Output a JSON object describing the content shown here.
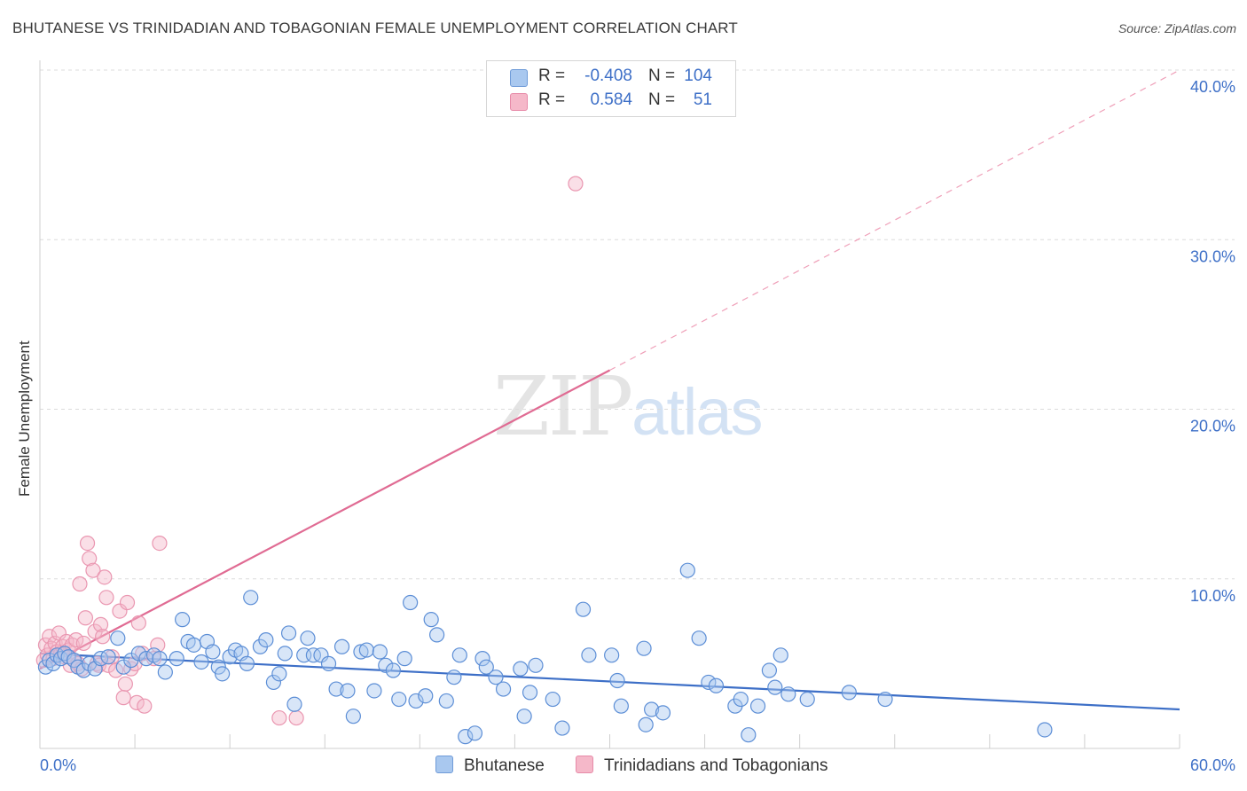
{
  "header": {
    "title": "BHUTANESE VS TRINIDADIAN AND TOBAGONIAN FEMALE UNEMPLOYMENT CORRELATION CHART",
    "source": "Source: ZipAtlas.com"
  },
  "watermark": {
    "zip": "ZIP",
    "atlas": "atlas"
  },
  "legend_box": [
    {
      "r_label": "R =",
      "r_value": "-0.408",
      "n_label": "N =",
      "n_value": "104",
      "color": "#a9c8ef"
    },
    {
      "r_label": "R =",
      "r_value": "0.584",
      "n_label": "N =",
      "n_value": "51",
      "color": "#f5b8c9"
    }
  ],
  "bottom_legend": [
    {
      "label": "Bhutanese",
      "color": "#a9c8ef"
    },
    {
      "label": "Trinidadians and Tobagonians",
      "color": "#f5b8c9"
    }
  ],
  "chart_data": {
    "type": "scatter",
    "title": "BHUTANESE VS TRINIDADIAN AND TOBAGONIAN FEMALE UNEMPLOYMENT CORRELATION CHART",
    "xlabel": "",
    "ylabel": "Female Unemployment",
    "xlim": [
      0,
      60
    ],
    "ylim": [
      0,
      40
    ],
    "x_tick_labels": [
      "0.0%",
      "60.0%"
    ],
    "y_ticks": [
      10,
      20,
      30,
      40
    ],
    "y_tick_labels": [
      "10.0%",
      "20.0%",
      "30.0%",
      "40.0%"
    ],
    "grid": true,
    "colors": {
      "blue": "#3d6fc7",
      "pink": "#e06b93",
      "blue_fill": "#a9c8ef",
      "pink_fill": "#f5b8c9",
      "tick_label": "#3d6fc7"
    },
    "series": [
      {
        "name": "Bhutanese",
        "color": "#3d6fc7",
        "trend": {
          "x": [
            0,
            60
          ],
          "y": [
            5.6,
            2.3
          ]
        },
        "points": [
          [
            0.3,
            4.8
          ],
          [
            0.5,
            5.2
          ],
          [
            0.7,
            5.0
          ],
          [
            0.9,
            5.5
          ],
          [
            1.1,
            5.3
          ],
          [
            1.3,
            5.6
          ],
          [
            1.5,
            5.4
          ],
          [
            1.8,
            5.2
          ],
          [
            2.0,
            4.8
          ],
          [
            2.3,
            4.6
          ],
          [
            2.6,
            5.0
          ],
          [
            2.9,
            4.7
          ],
          [
            3.2,
            5.3
          ],
          [
            3.6,
            5.4
          ],
          [
            4.1,
            6.5
          ],
          [
            4.4,
            4.8
          ],
          [
            4.8,
            5.2
          ],
          [
            5.2,
            5.6
          ],
          [
            5.6,
            5.3
          ],
          [
            6.0,
            5.5
          ],
          [
            6.3,
            5.3
          ],
          [
            6.6,
            4.5
          ],
          [
            7.2,
            5.3
          ],
          [
            7.5,
            7.6
          ],
          [
            7.8,
            6.3
          ],
          [
            8.1,
            6.1
          ],
          [
            8.5,
            5.1
          ],
          [
            8.8,
            6.3
          ],
          [
            9.1,
            5.7
          ],
          [
            9.4,
            4.8
          ],
          [
            9.6,
            4.4
          ],
          [
            10.0,
            5.4
          ],
          [
            10.3,
            5.8
          ],
          [
            10.6,
            5.6
          ],
          [
            10.9,
            5.0
          ],
          [
            11.1,
            8.9
          ],
          [
            11.6,
            6.0
          ],
          [
            11.9,
            6.4
          ],
          [
            12.3,
            3.9
          ],
          [
            12.6,
            4.4
          ],
          [
            12.9,
            5.6
          ],
          [
            13.1,
            6.8
          ],
          [
            13.4,
            2.6
          ],
          [
            13.9,
            5.5
          ],
          [
            14.1,
            6.5
          ],
          [
            14.4,
            5.5
          ],
          [
            14.8,
            5.5
          ],
          [
            15.2,
            5.0
          ],
          [
            15.6,
            3.5
          ],
          [
            15.9,
            6.0
          ],
          [
            16.2,
            3.4
          ],
          [
            16.5,
            1.9
          ],
          [
            16.9,
            5.7
          ],
          [
            17.2,
            5.8
          ],
          [
            17.6,
            3.4
          ],
          [
            17.9,
            5.7
          ],
          [
            18.2,
            4.9
          ],
          [
            18.6,
            4.6
          ],
          [
            18.9,
            2.9
          ],
          [
            19.2,
            5.3
          ],
          [
            19.5,
            8.6
          ],
          [
            19.8,
            2.8
          ],
          [
            20.3,
            3.1
          ],
          [
            20.6,
            7.6
          ],
          [
            20.9,
            6.7
          ],
          [
            21.4,
            2.8
          ],
          [
            21.8,
            4.2
          ],
          [
            22.1,
            5.5
          ],
          [
            22.4,
            0.7
          ],
          [
            22.9,
            0.9
          ],
          [
            23.3,
            5.3
          ],
          [
            23.5,
            4.8
          ],
          [
            24.0,
            4.2
          ],
          [
            24.4,
            3.5
          ],
          [
            25.3,
            4.7
          ],
          [
            25.5,
            1.9
          ],
          [
            25.8,
            3.3
          ],
          [
            26.1,
            4.9
          ],
          [
            27.0,
            2.9
          ],
          [
            27.5,
            1.2
          ],
          [
            28.6,
            8.2
          ],
          [
            28.9,
            5.5
          ],
          [
            30.1,
            5.5
          ],
          [
            30.4,
            4.0
          ],
          [
            30.6,
            2.5
          ],
          [
            31.8,
            5.9
          ],
          [
            31.9,
            1.4
          ],
          [
            32.2,
            2.3
          ],
          [
            32.8,
            2.1
          ],
          [
            34.1,
            10.5
          ],
          [
            34.7,
            6.5
          ],
          [
            35.2,
            3.9
          ],
          [
            35.6,
            3.7
          ],
          [
            36.6,
            2.5
          ],
          [
            36.9,
            2.9
          ],
          [
            37.3,
            0.8
          ],
          [
            37.8,
            2.5
          ],
          [
            38.4,
            4.6
          ],
          [
            38.7,
            3.6
          ],
          [
            39.0,
            5.5
          ],
          [
            39.4,
            3.2
          ],
          [
            40.4,
            2.9
          ],
          [
            42.6,
            3.3
          ],
          [
            44.5,
            2.9
          ],
          [
            52.9,
            1.1
          ]
        ]
      },
      {
        "name": "Trinidadians and Tobagonians",
        "color": "#e06b93",
        "trend": {
          "x": [
            0,
            30
          ],
          "y": [
            4.7,
            22.3
          ]
        },
        "trend_dashed": {
          "x": [
            30,
            60
          ],
          "y": [
            22.3,
            40.0
          ]
        },
        "points": [
          [
            0.2,
            5.2
          ],
          [
            0.3,
            6.1
          ],
          [
            0.4,
            5.5
          ],
          [
            0.5,
            6.6
          ],
          [
            0.6,
            5.9
          ],
          [
            0.7,
            5.3
          ],
          [
            0.8,
            6.2
          ],
          [
            0.9,
            5.7
          ],
          [
            1.0,
            6.8
          ],
          [
            1.1,
            5.6
          ],
          [
            1.2,
            6.0
          ],
          [
            1.3,
            5.4
          ],
          [
            1.4,
            6.3
          ],
          [
            1.5,
            5.8
          ],
          [
            1.6,
            4.9
          ],
          [
            1.7,
            6.1
          ],
          [
            1.8,
            5.2
          ],
          [
            1.9,
            6.4
          ],
          [
            2.0,
            5.0
          ],
          [
            2.1,
            9.7
          ],
          [
            2.2,
            4.7
          ],
          [
            2.3,
            6.2
          ],
          [
            2.4,
            7.7
          ],
          [
            2.5,
            12.1
          ],
          [
            2.6,
            11.2
          ],
          [
            2.8,
            10.5
          ],
          [
            2.9,
            6.9
          ],
          [
            3.0,
            5.0
          ],
          [
            3.1,
            4.9
          ],
          [
            3.2,
            7.3
          ],
          [
            3.3,
            6.6
          ],
          [
            3.4,
            10.1
          ],
          [
            3.5,
            8.9
          ],
          [
            3.6,
            4.9
          ],
          [
            3.8,
            5.4
          ],
          [
            4.0,
            4.6
          ],
          [
            4.2,
            8.1
          ],
          [
            4.4,
            3.0
          ],
          [
            4.5,
            3.8
          ],
          [
            4.6,
            8.6
          ],
          [
            4.8,
            4.7
          ],
          [
            5.0,
            5.0
          ],
          [
            5.1,
            2.7
          ],
          [
            5.2,
            7.4
          ],
          [
            5.4,
            5.6
          ],
          [
            5.5,
            2.5
          ],
          [
            6.0,
            5.3
          ],
          [
            6.2,
            6.1
          ],
          [
            6.3,
            12.1
          ],
          [
            12.6,
            1.8
          ],
          [
            13.5,
            1.8
          ],
          [
            28.2,
            33.3
          ]
        ]
      }
    ]
  }
}
